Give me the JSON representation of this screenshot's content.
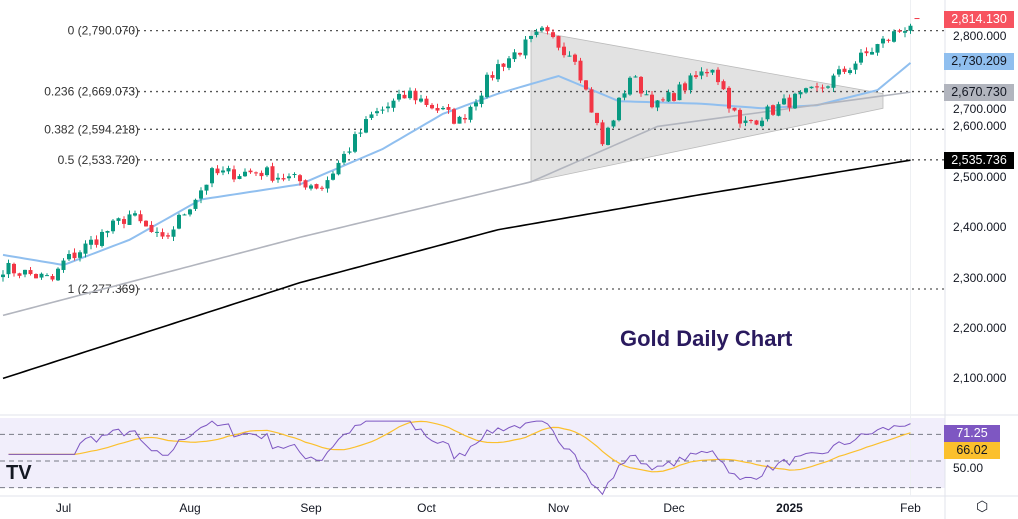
{
  "chart_data": {
    "type": "candlestick",
    "title": "Gold Daily Chart",
    "price_axis": {
      "ticks": [
        2100,
        2200,
        2300,
        2400,
        2500,
        2600,
        2700,
        2800
      ],
      "tick_labels": [
        "2,100.000",
        "2,200.000",
        "2,300.000",
        "2,400.000",
        "2,500.000",
        "2,600.000",
        "2,700.000",
        "2,800.000"
      ]
    },
    "time_axis": {
      "labels": [
        {
          "bar": 11,
          "text": "Jul"
        },
        {
          "bar": 34,
          "text": "Aug"
        },
        {
          "bar": 56,
          "text": "Sep"
        },
        {
          "bar": 77,
          "text": "Oct"
        },
        {
          "bar": 101,
          "text": "Nov"
        },
        {
          "bar": 122,
          "text": "Dec"
        },
        {
          "bar": 143,
          "text": "2025"
        },
        {
          "bar": 165,
          "text": "Feb"
        }
      ]
    },
    "bars": 166,
    "close_anchors": [
      [
        0,
        2320
      ],
      [
        9,
        2295
      ],
      [
        11,
        2330
      ],
      [
        23,
        2425
      ],
      [
        29,
        2370
      ],
      [
        38,
        2505
      ],
      [
        47,
        2510
      ],
      [
        58,
        2480
      ],
      [
        67,
        2620
      ],
      [
        74,
        2665
      ],
      [
        83,
        2610
      ],
      [
        90,
        2720
      ],
      [
        98,
        2785
      ],
      [
        104,
        2740
      ],
      [
        109,
        2565
      ],
      [
        114,
        2700
      ],
      [
        119,
        2640
      ],
      [
        129,
        2720
      ],
      [
        134,
        2600
      ],
      [
        143,
        2650
      ],
      [
        148,
        2670
      ],
      [
        159,
        2760
      ],
      [
        165,
        2805
      ]
    ],
    "moving_averages": [
      {
        "name": "MA fast",
        "color": "#90bfef",
        "anchors": [
          [
            0,
            2345
          ],
          [
            11,
            2325
          ],
          [
            23,
            2375
          ],
          [
            36,
            2455
          ],
          [
            54,
            2485
          ],
          [
            69,
            2555
          ],
          [
            80,
            2625
          ],
          [
            90,
            2665
          ],
          [
            101,
            2700
          ],
          [
            112,
            2650
          ],
          [
            127,
            2645
          ],
          [
            138,
            2636
          ],
          [
            148,
            2642
          ],
          [
            159,
            2672
          ],
          [
            165,
            2726
          ]
        ],
        "last": "2,730.209"
      },
      {
        "name": "MA mid",
        "color": "#b2b5be",
        "anchors": [
          [
            0,
            2225
          ],
          [
            54,
            2380
          ],
          [
            96,
            2490
          ],
          [
            119,
            2600
          ],
          [
            165,
            2668
          ]
        ],
        "last": "2,670.730"
      },
      {
        "name": "MA slow",
        "color": "#000000",
        "anchors": [
          [
            0,
            2100
          ],
          [
            54,
            2290
          ],
          [
            90,
            2395
          ],
          [
            127,
            2465
          ],
          [
            165,
            2533
          ]
        ],
        "last": "2,535.736"
      }
    ],
    "last_price": "2,814.130",
    "fib_levels": [
      {
        "label": "0 (2,790.070)",
        "price": 2790.07
      },
      {
        "label": "0.236 (2,669.073)",
        "price": 2669.073
      },
      {
        "label": "0.382 (2,594.218)",
        "price": 2594.218
      },
      {
        "label": "0.5 (2,533.720)",
        "price": 2533.72
      },
      {
        "label": "1 (2,277.369)",
        "price": 2277.369
      }
    ],
    "triangle": {
      "start_bar": 96,
      "end_bar": 160,
      "top": [
        2790,
        2665
      ],
      "bottom": [
        2490,
        2636
      ]
    },
    "rsi": {
      "levels": [
        70,
        50,
        30
      ],
      "level_label": "50.00",
      "value": "71.25",
      "signal": "66.02",
      "range": [
        20,
        80
      ]
    },
    "colors": {
      "up": "#089981",
      "down": "#f23645",
      "last": "#f7525f",
      "rsi": "#7e57c2",
      "rsi_signal": "#fbc02d"
    }
  }
}
